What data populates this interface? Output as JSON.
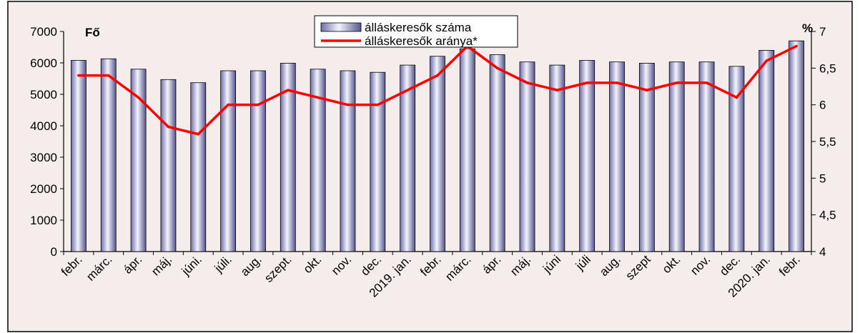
{
  "chart_data": {
    "type": "bar",
    "title": "",
    "categories": [
      "febr.",
      "márc.",
      "ápr.",
      "máj.",
      "júni.",
      "júli.",
      "aug.",
      "szept.",
      "okt.",
      "nov.",
      "dec.",
      "2019. jan.",
      "febr.",
      "márc.",
      "ápr.",
      "máj.",
      "júni",
      "júli",
      "aug.",
      "szept",
      "okt.",
      "nov.",
      "dec.",
      "2020. jan.",
      "febr."
    ],
    "series": [
      {
        "name": "álláskeresők száma",
        "type": "bar",
        "axis": "left",
        "color": "#9a9cc6",
        "values": [
          6080,
          6130,
          5800,
          5470,
          5370,
          5750,
          5750,
          5990,
          5800,
          5750,
          5700,
          5930,
          6210,
          6450,
          6260,
          6030,
          5930,
          6080,
          6030,
          5990,
          6030,
          6030,
          5890,
          6400,
          6700
        ]
      },
      {
        "name": "álláskeresők aránya*",
        "type": "line",
        "axis": "right",
        "color": "#ff0000",
        "values": [
          6.4,
          6.4,
          6.1,
          5.7,
          5.6,
          6.0,
          6.0,
          6.2,
          6.1,
          6.0,
          6.0,
          6.2,
          6.4,
          6.8,
          6.5,
          6.3,
          6.2,
          6.3,
          6.3,
          6.2,
          6.3,
          6.3,
          6.1,
          6.6,
          6.8
        ]
      }
    ],
    "y_left": {
      "label": "Fő",
      "min": 0,
      "max": 7000,
      "step": 1000
    },
    "y_right": {
      "label": "%",
      "min": 4,
      "max": 7,
      "step": 0.5
    },
    "y_left_ticks": [
      "0",
      "1000",
      "2000",
      "3000",
      "4000",
      "5000",
      "6000",
      "7000"
    ],
    "y_right_ticks": [
      "4",
      "4,5",
      "5",
      "5,5",
      "6",
      "6,5",
      "7"
    ],
    "grid": false,
    "legend_position": "top-center",
    "colors": {
      "plot_bg": "#f5ecec",
      "frame": "#000000"
    }
  }
}
